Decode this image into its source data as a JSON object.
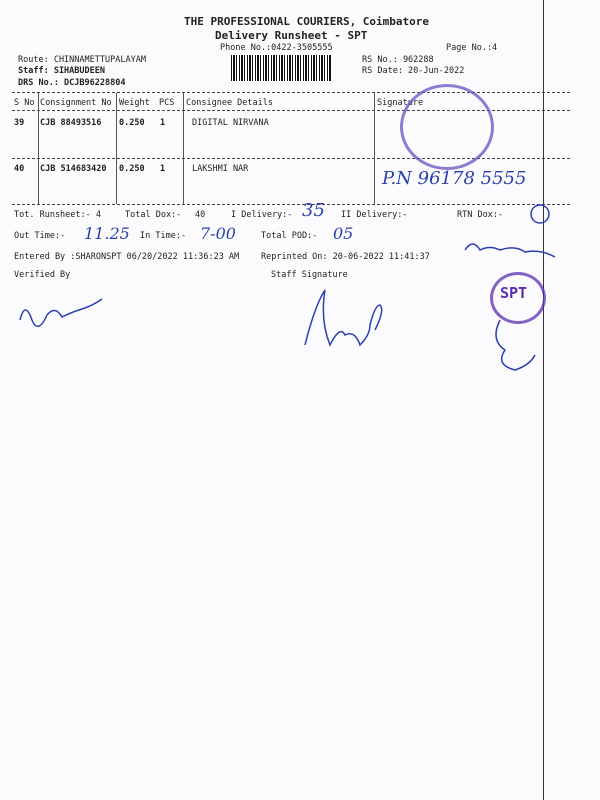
{
  "header": {
    "company": "THE PROFESSIONAL COURIERS, Coimbatore",
    "title": "Delivery Runsheet - SPT",
    "phone": "Phone No.:0422-3505555",
    "page": "Page No.:4",
    "route": "Route: CHINNAMETTUPALAYAM",
    "staff": "Staff: SIHABUDEEN",
    "drs": "DRS No.: DCJB96228804",
    "rs_no": "RS No.: 962288",
    "rs_date": "RS Date: 20-Jun-2022"
  },
  "table": {
    "columns": [
      "S No",
      "Consignment No",
      "Weight",
      "PCS",
      "Consignee Details",
      "Signature"
    ],
    "rows": [
      {
        "sno": "39",
        "cons": "CJB 88493516",
        "weight": "0.250",
        "pcs": "1",
        "consignee": "DIGITAL NIRVANA"
      },
      {
        "sno": "40",
        "cons": "CJB 514683420",
        "weight": "0.250",
        "pcs": "1",
        "consignee": "LAKSHMI NAR"
      }
    ]
  },
  "summary": {
    "tot_runsheet": "Tot. Runsheet:- 4",
    "total_dox": "Total Dox:-",
    "total_dox_val": "40",
    "i_delivery": "I Delivery:-",
    "i_delivery_hw": "35",
    "ii_delivery": "II Delivery:-",
    "rtn_dox": "RTN Dox:-",
    "out_time": "Out Time:-",
    "out_time_hw": "11.25",
    "in_time": "In Time:-",
    "in_time_hw": "7-00",
    "total_pod": "Total POD:-",
    "total_pod_hw": "05",
    "entered_by": "Entered By :SHARONSPT 06/20/2022 11:36:23 AM",
    "reprinted": "Reprinted On: 20-06-2022 11:41:37",
    "verified_by": "Verified By",
    "staff_signature": "Staff Signature"
  },
  "handwriting": {
    "row40_phone": "P.N  96178 5555"
  },
  "stamps": {
    "spt": "SPT"
  }
}
